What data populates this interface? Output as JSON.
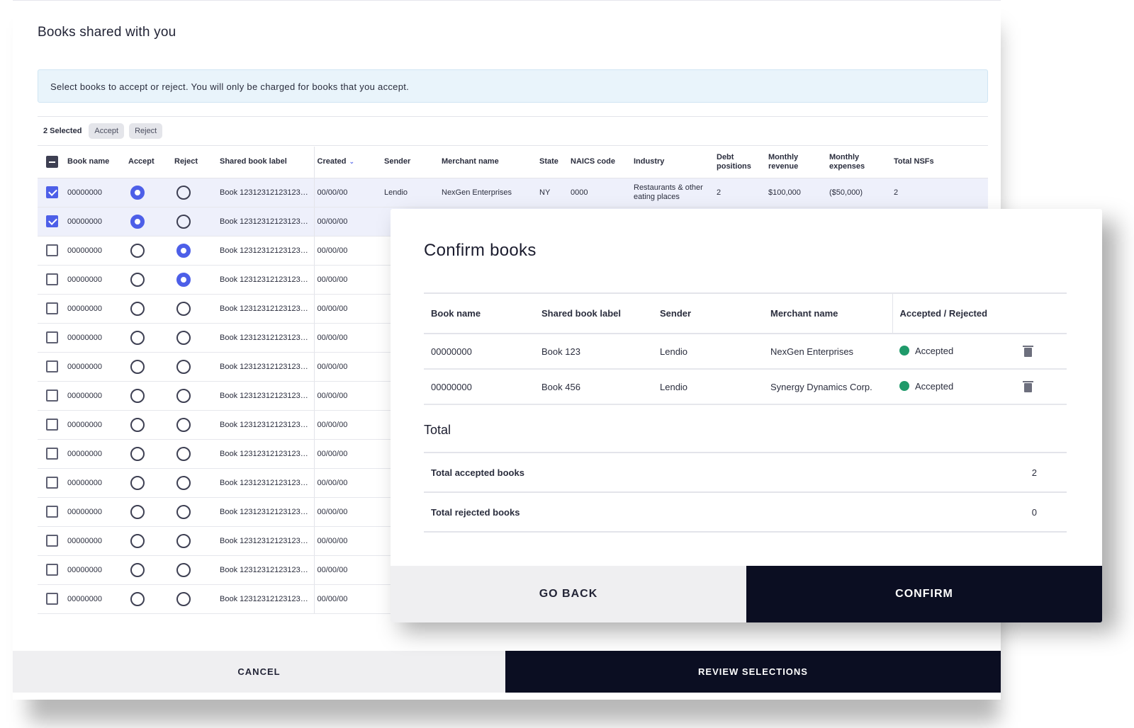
{
  "panel": {
    "title": "Books shared with you",
    "banner": "Select books to accept or reject. You will only be charged for books that you accept.",
    "bulk": {
      "count": "2 Selected",
      "accept": "Accept",
      "reject": "Reject"
    },
    "columns": [
      "Book name",
      "Accept",
      "Reject",
      "Shared book label",
      "Created",
      "Sender",
      "Merchant name",
      "State",
      "NAICS code",
      "Industry",
      "Debt positions",
      "Monthly revenue",
      "Monthly expenses",
      "Total NSFs"
    ],
    "rows": [
      {
        "checked": true,
        "choice": "accept",
        "book": "00000000",
        "label": "Book 123123121231231231",
        "created": "00/00/00",
        "sender": "Lendio",
        "merchant": "NexGen Enterprises",
        "state": "NY",
        "naics": "0000",
        "industry": "Restaurants & other eating places",
        "debt": "2",
        "revenue": "$100,000",
        "expenses": "($50,000)",
        "nsfs": "2"
      },
      {
        "checked": true,
        "choice": "accept",
        "book": "00000000",
        "label": "Book 123123121231231231",
        "created": "00/00/00"
      },
      {
        "checked": false,
        "choice": "reject",
        "book": "00000000",
        "label": "Book 123123121231231231",
        "created": "00/00/00"
      },
      {
        "checked": false,
        "choice": "reject",
        "book": "00000000",
        "label": "Book 123123121231231231",
        "created": "00/00/00"
      },
      {
        "checked": false,
        "choice": "none",
        "book": "00000000",
        "label": "Book 123123121231231231",
        "created": "00/00/00"
      },
      {
        "checked": false,
        "choice": "none",
        "book": "00000000",
        "label": "Book 123123121231231231",
        "created": "00/00/00"
      },
      {
        "checked": false,
        "choice": "none",
        "book": "00000000",
        "label": "Book 123123121231231231",
        "created": "00/00/00"
      },
      {
        "checked": false,
        "choice": "none",
        "book": "00000000",
        "label": "Book 123123121231231231",
        "created": "00/00/00"
      },
      {
        "checked": false,
        "choice": "none",
        "book": "00000000",
        "label": "Book 123123121231231231",
        "created": "00/00/00"
      },
      {
        "checked": false,
        "choice": "none",
        "book": "00000000",
        "label": "Book 123123121231231231",
        "created": "00/00/00"
      },
      {
        "checked": false,
        "choice": "none",
        "book": "00000000",
        "label": "Book 123123121231231231",
        "created": "00/00/00"
      },
      {
        "checked": false,
        "choice": "none",
        "book": "00000000",
        "label": "Book 123123121231231231",
        "created": "00/00/00"
      },
      {
        "checked": false,
        "choice": "none",
        "book": "00000000",
        "label": "Book 123123121231231231",
        "created": "00/00/00"
      },
      {
        "checked": false,
        "choice": "none",
        "book": "00000000",
        "label": "Book 123123121231231231",
        "created": "00/00/00"
      },
      {
        "checked": false,
        "choice": "none",
        "book": "00000000",
        "label": "Book 123123121231231231",
        "created": "00/00/00"
      }
    ],
    "cancel_label": "CANCEL",
    "review_label": "REVIEW SELECTIONS"
  },
  "modal": {
    "title": "Confirm books",
    "columns": [
      "Book name",
      "Shared book label",
      "Sender",
      "Merchant name",
      "Accepted / Rejected"
    ],
    "rows": [
      {
        "book": "00000000",
        "label": "Book 123",
        "sender": "Lendio",
        "merchant": "NexGen Enterprises",
        "status": "Accepted"
      },
      {
        "book": "00000000",
        "label": "Book 456",
        "sender": "Lendio",
        "merchant": "Synergy Dynamics Corp.",
        "status": "Accepted"
      }
    ],
    "total_title": "Total",
    "totals": [
      {
        "label": "Total accepted books",
        "value": "2"
      },
      {
        "label": "Total rejected books",
        "value": "0"
      }
    ],
    "back_label": "GO BACK",
    "confirm_label": "CONFIRM"
  },
  "colors": {
    "accent": "#4d5fe8",
    "dark": "#0b0e22",
    "accepted": "#1f9a6a"
  },
  "icons": {
    "sort": "chevron-down-icon",
    "delete": "trash-icon"
  }
}
